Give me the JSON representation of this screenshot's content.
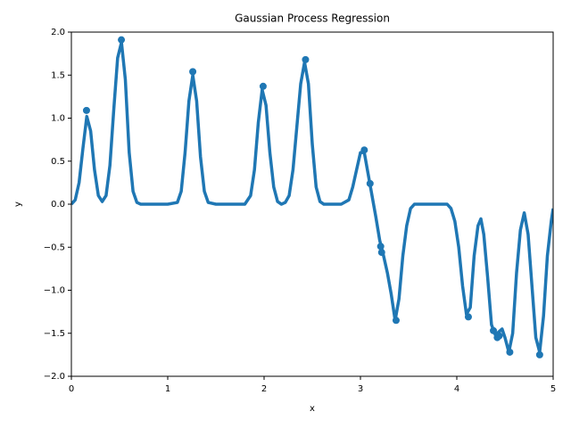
{
  "chart_data": {
    "type": "line",
    "title": "Gaussian Process Regression",
    "x_label": "x",
    "y_label": "y",
    "xlim": [
      0,
      5
    ],
    "ylim": [
      -2,
      2
    ],
    "xticks": [
      0,
      1,
      2,
      3,
      4,
      5
    ],
    "yticks": [
      {
        "value": -2,
        "label": "−2.0"
      },
      {
        "value": -1.5,
        "label": "−1.5"
      },
      {
        "value": -1,
        "label": "−1.0"
      },
      {
        "value": -0.5,
        "label": "−0.5"
      },
      {
        "value": 0,
        "label": "0.0"
      },
      0.5,
      {
        "value": 1,
        "label": "1.0"
      },
      1.5,
      {
        "value": 2,
        "label": "2.0"
      }
    ],
    "grid": false,
    "series": [
      {
        "color": "#1f77b4",
        "line": true,
        "marker": false,
        "x": [
          0,
          0.04,
          0.08,
          0.12,
          0.16,
          0.2,
          0.24,
          0.28,
          0.32,
          0.36,
          0.4,
          0.44,
          0.48,
          0.52,
          0.56,
          0.6,
          0.64,
          0.68,
          0.72,
          0.8,
          1.0,
          1.1,
          1.14,
          1.18,
          1.22,
          1.26,
          1.3,
          1.34,
          1.38,
          1.42,
          1.5,
          1.8,
          1.86,
          1.9,
          1.94,
          1.98,
          2.02,
          2.06,
          2.1,
          2.14,
          2.18,
          2.22,
          2.26,
          2.3,
          2.34,
          2.38,
          2.42,
          2.46,
          2.5,
          2.54,
          2.58,
          2.62,
          2.8,
          2.88,
          2.92,
          2.96,
          3.0,
          3.04,
          3.08,
          3.12,
          3.16,
          3.2,
          3.24,
          3.28,
          3.32,
          3.36,
          3.4,
          3.44,
          3.48,
          3.52,
          3.56,
          3.6,
          3.9,
          3.94,
          3.98,
          4.02,
          4.06,
          4.1,
          4.14,
          4.18,
          4.22,
          4.25,
          4.28,
          4.32,
          4.36,
          4.4,
          4.44,
          4.47,
          4.5,
          4.54,
          4.58,
          4.62,
          4.66,
          4.7,
          4.74,
          4.78,
          4.82,
          4.86,
          4.9,
          4.94,
          4.98,
          5.0
        ],
        "values": [
          0,
          0.05,
          0.25,
          0.65,
          1.02,
          0.85,
          0.4,
          0.1,
          0.03,
          0.1,
          0.45,
          1.1,
          1.7,
          1.88,
          1.45,
          0.6,
          0.15,
          0.02,
          0,
          0,
          0,
          0.02,
          0.15,
          0.6,
          1.2,
          1.5,
          1.2,
          0.55,
          0.15,
          0.02,
          0,
          0,
          0.1,
          0.4,
          0.95,
          1.33,
          1.15,
          0.6,
          0.2,
          0.03,
          0,
          0.02,
          0.1,
          0.4,
          0.9,
          1.4,
          1.65,
          1.4,
          0.7,
          0.2,
          0.03,
          0,
          0,
          0.05,
          0.2,
          0.4,
          0.6,
          0.6,
          0.35,
          0.1,
          -0.15,
          -0.42,
          -0.6,
          -0.8,
          -1.05,
          -1.35,
          -1.1,
          -0.6,
          -0.25,
          -0.05,
          0,
          0,
          0,
          -0.05,
          -0.2,
          -0.5,
          -0.95,
          -1.28,
          -1.2,
          -0.6,
          -0.25,
          -0.17,
          -0.35,
          -0.85,
          -1.4,
          -1.52,
          -1.48,
          -1.45,
          -1.55,
          -1.72,
          -1.5,
          -0.8,
          -0.3,
          -0.1,
          -0.35,
          -0.95,
          -1.55,
          -1.72,
          -1.3,
          -0.6,
          -0.2,
          -0.05
        ]
      },
      {
        "color": "#1f77b4",
        "line": false,
        "marker": true,
        "x": [
          0.157,
          0.519,
          1.26,
          1.99,
          2.43,
          3.04,
          3.1,
          3.21,
          3.22,
          3.37,
          4.12,
          4.38,
          4.42,
          4.44,
          4.55,
          4.86
        ],
        "values": [
          1.09,
          1.91,
          1.54,
          1.37,
          1.68,
          0.63,
          0.24,
          -0.49,
          -0.56,
          -1.35,
          -1.31,
          -1.47,
          -1.55,
          -1.53,
          -1.72,
          -1.75
        ]
      }
    ]
  }
}
